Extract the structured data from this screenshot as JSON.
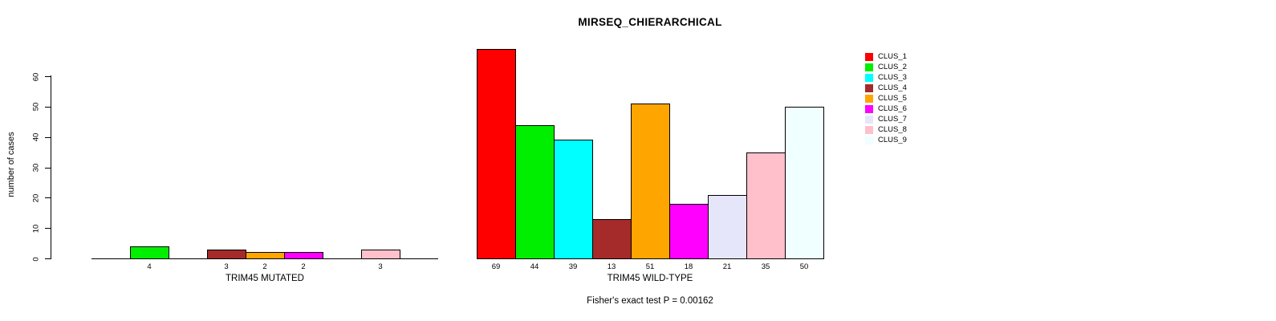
{
  "chart_data": {
    "type": "bar",
    "title": "MIRSEQ_CHIERARCHICAL",
    "ylabel": "number of cases",
    "ylim": [
      0,
      60
    ],
    "yticks": [
      0,
      10,
      20,
      30,
      40,
      50,
      60
    ],
    "grid": false,
    "bar_border_color": "#000000",
    "background_color": "#ffffff",
    "legend": {
      "position": "right",
      "entries": [
        {
          "label": "CLUS_1",
          "color": "#FF0000"
        },
        {
          "label": "CLUS_2",
          "color": "#00EE00"
        },
        {
          "label": "CLUS_3",
          "color": "#00FFFF"
        },
        {
          "label": "CLUS_4",
          "color": "#A52A2A"
        },
        {
          "label": "CLUS_5",
          "color": "#FFA500"
        },
        {
          "label": "CLUS_6",
          "color": "#FF00FF"
        },
        {
          "label": "CLUS_7",
          "color": "#E6E6FA"
        },
        {
          "label": "CLUS_8",
          "color": "#FFC0CB"
        },
        {
          "label": "CLUS_9",
          "color": "#F0FFFF"
        }
      ]
    },
    "groups": [
      {
        "xlabel": "TRIM45 MUTATED",
        "values": [
          0,
          4,
          0,
          3,
          2,
          2,
          0,
          3,
          0
        ],
        "bar_labels": [
          "",
          "4",
          "",
          "3",
          "2",
          "2",
          "",
          "3",
          ""
        ]
      },
      {
        "xlabel": "TRIM45 WILD-TYPE",
        "values": [
          69,
          44,
          39,
          13,
          51,
          18,
          21,
          35,
          50
        ],
        "bar_labels": [
          "69",
          "44",
          "39",
          "13",
          "51",
          "18",
          "21",
          "35",
          "50"
        ]
      }
    ],
    "annotation": "Fisher's exact test P = 0.00162"
  }
}
